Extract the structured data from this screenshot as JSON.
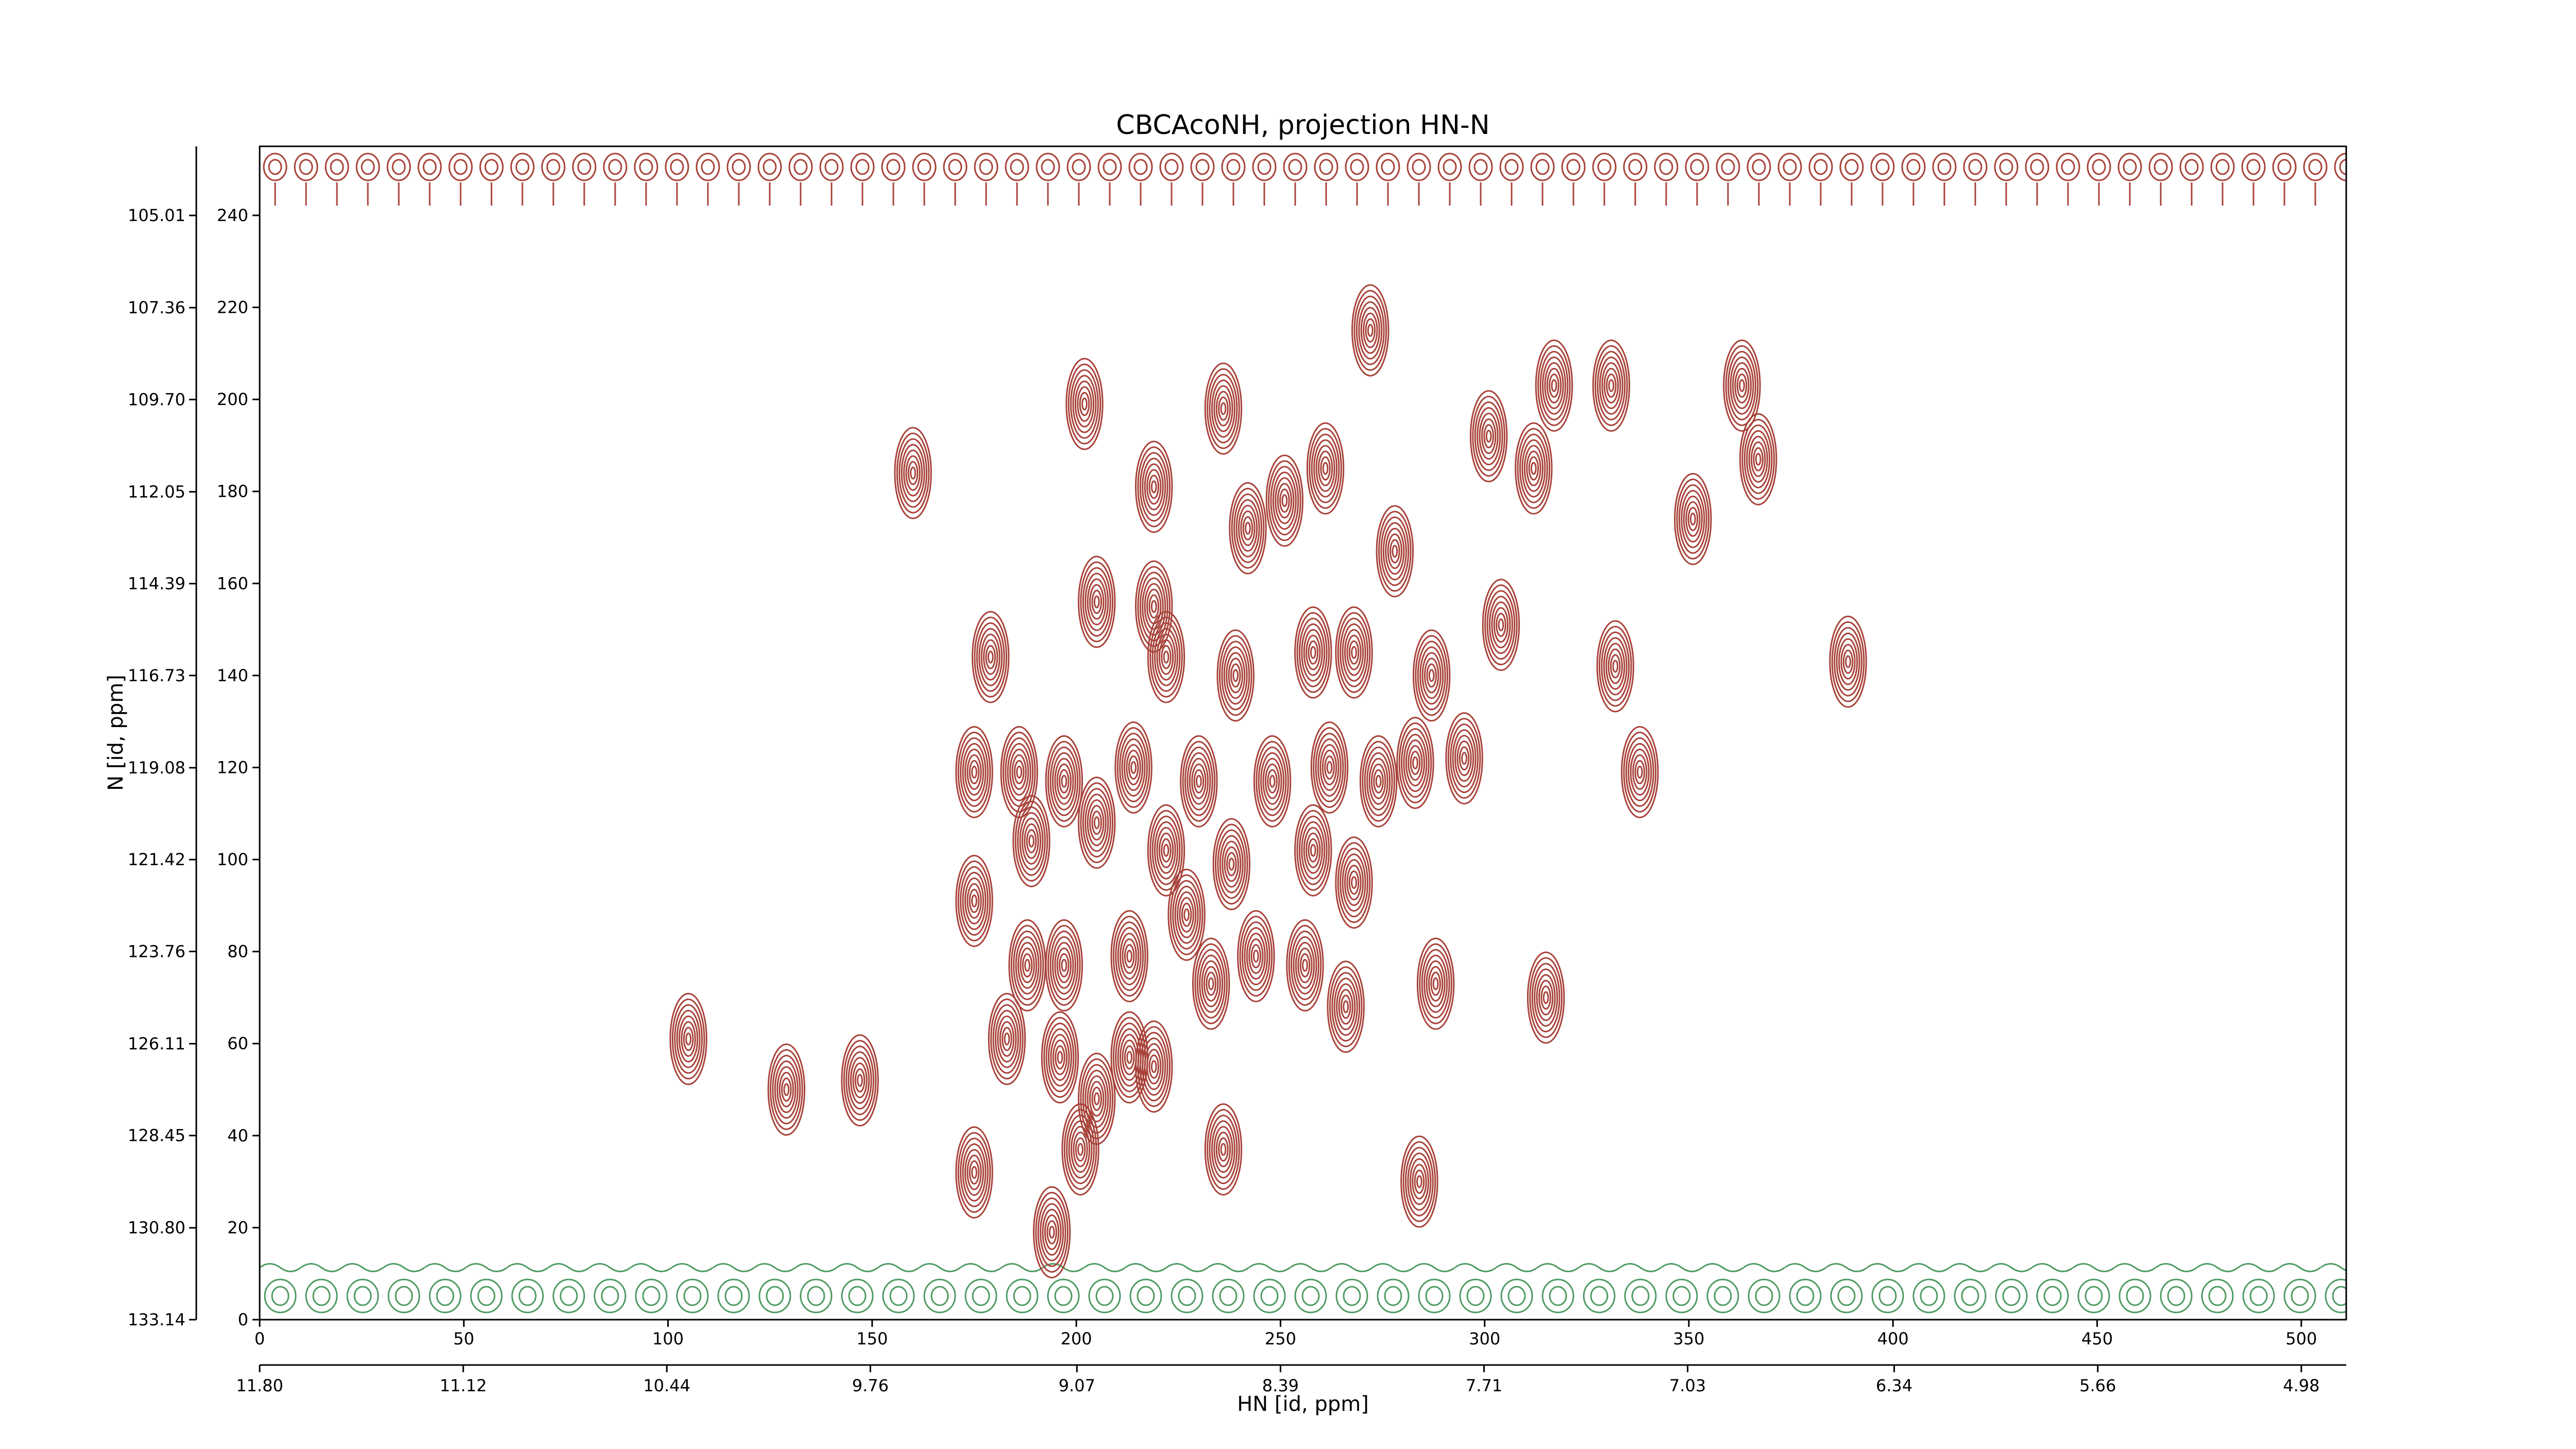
{
  "chart_data": {
    "type": "contour",
    "title": "CBCAcoNH, projection HN-N",
    "x_label": "HN [id, ppm]",
    "y_label": "N [id, ppm]",
    "xlim": [
      0,
      511
    ],
    "ylim": [
      0,
      255
    ],
    "xticks": [
      0,
      50,
      100,
      150,
      200,
      250,
      300,
      350,
      400,
      450,
      500
    ],
    "yticks": [
      0,
      20,
      40,
      60,
      80,
      100,
      120,
      140,
      160,
      180,
      200,
      220,
      240
    ],
    "x2lim": [
      11.8,
      4.83
    ],
    "x2ticks": [
      {
        "value": 11.8,
        "label": "11.80"
      },
      11.12,
      10.44,
      9.76,
      9.07,
      8.39,
      7.71,
      7.03,
      6.34,
      5.66,
      4.98
    ],
    "y2lim": [
      133.14,
      103.25
    ],
    "y2ticks": [
      133.14,
      {
        "value": 130.8,
        "label": "130.80"
      },
      128.45,
      126.11,
      123.76,
      121.42,
      119.08,
      116.73,
      114.39,
      112.05,
      {
        "value": 109.7,
        "label": "109.70"
      },
      107.36,
      105.01
    ],
    "positive_color": "#a8433a",
    "negative_color": "#4f9a63",
    "peaks": {
      "x": [
        160,
        202,
        219,
        236,
        242,
        251,
        261,
        272,
        278,
        301,
        317,
        312,
        331,
        351,
        363,
        367,
        205,
        219,
        179,
        222,
        239,
        258,
        268,
        287,
        304,
        332,
        389,
        175,
        186,
        197,
        214,
        230,
        248,
        262,
        274,
        283,
        295,
        338,
        175,
        189,
        205,
        222,
        238,
        258,
        268,
        188,
        197,
        213,
        227,
        233,
        244,
        256,
        266,
        288,
        315,
        105,
        129,
        147,
        183,
        196,
        213,
        219,
        205,
        236,
        175,
        201,
        194,
        284
      ],
      "y": [
        184,
        199,
        181,
        198,
        172,
        178,
        185,
        215,
        167,
        192,
        203,
        185,
        203,
        174,
        203,
        187,
        156,
        155,
        144,
        144,
        140,
        145,
        145,
        140,
        151,
        142,
        143,
        119,
        119,
        117,
        120,
        117,
        117,
        120,
        117,
        121,
        122,
        119,
        91,
        104,
        108,
        102,
        99,
        102,
        95,
        77,
        77,
        79,
        88,
        73,
        79,
        77,
        68,
        73,
        70,
        61,
        50,
        52,
        61,
        57,
        57,
        55,
        48,
        37,
        32,
        37,
        19,
        30
      ]
    }
  }
}
